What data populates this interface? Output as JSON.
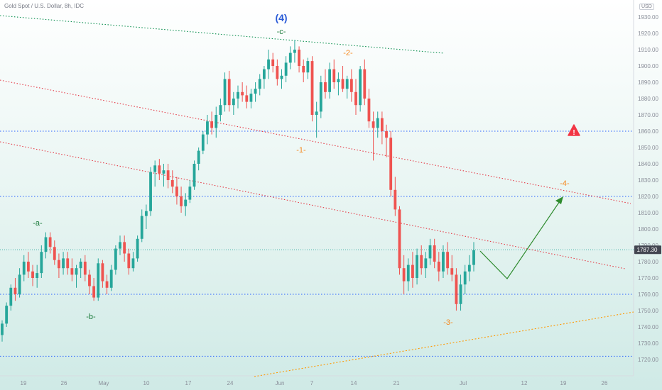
{
  "header": {
    "title": "Gold Spot / U.S. Dollar, 8h, IDC",
    "currency": "USD"
  },
  "colors": {
    "up": "#26a69a",
    "down": "#ef5350",
    "hline": "#2962ff",
    "channel_top": "#0b8f4f",
    "channel_red": "#e53945",
    "support_orange": "#ff9800",
    "projection": "#2e8b2e",
    "label_green": "#1b7a3a",
    "label_blue": "#2a5bd7",
    "label_orange": "#f5891f",
    "price_tag": "#434651"
  },
  "chart_data": {
    "type": "candlestick",
    "symbol": "Gold Spot / U.S. Dollar",
    "interval": "8h",
    "source": "IDC",
    "y_axis": {
      "ticks": [
        "1720.00",
        "1730.00",
        "1740.00",
        "1750.00",
        "1760.00",
        "1770.00",
        "1780.00",
        "1790.00",
        "1800.00",
        "1810.00",
        "1820.00",
        "1830.00",
        "1840.00",
        "1850.00",
        "1860.00",
        "1870.00",
        "1880.00",
        "1890.00",
        "1900.00",
        "1910.00",
        "1920.00",
        "1930.00"
      ],
      "range": [
        1715,
        1933
      ]
    },
    "x_axis": {
      "ticks": [
        "19",
        "26",
        "May",
        "10",
        "17",
        "24",
        "Jun",
        "7",
        "14",
        "21",
        "Jul",
        "12",
        "19",
        "26"
      ]
    },
    "last_price": "1787.30",
    "candles_ohlc": [
      [
        1735,
        1744,
        1731,
        1742
      ],
      [
        1742,
        1755,
        1740,
        1753
      ],
      [
        1753,
        1766,
        1750,
        1764
      ],
      [
        1764,
        1770,
        1756,
        1760
      ],
      [
        1760,
        1776,
        1758,
        1772
      ],
      [
        1772,
        1784,
        1768,
        1780
      ],
      [
        1780,
        1786,
        1770,
        1774
      ],
      [
        1774,
        1778,
        1765,
        1770
      ],
      [
        1770,
        1778,
        1764,
        1773
      ],
      [
        1773,
        1790,
        1770,
        1786
      ],
      [
        1786,
        1798,
        1782,
        1795
      ],
      [
        1795,
        1798,
        1785,
        1789
      ],
      [
        1789,
        1793,
        1778,
        1781
      ],
      [
        1781,
        1785,
        1770,
        1776
      ],
      [
        1776,
        1786,
        1772,
        1782
      ],
      [
        1782,
        1786,
        1772,
        1776
      ],
      [
        1776,
        1782,
        1768,
        1772
      ],
      [
        1772,
        1778,
        1764,
        1776
      ],
      [
        1776,
        1782,
        1770,
        1780
      ],
      [
        1780,
        1784,
        1768,
        1772
      ],
      [
        1772,
        1775,
        1760,
        1765
      ],
      [
        1765,
        1770,
        1756,
        1758
      ],
      [
        1758,
        1782,
        1756,
        1779
      ],
      [
        1779,
        1781,
        1764,
        1768
      ],
      [
        1768,
        1772,
        1760,
        1764
      ],
      [
        1764,
        1778,
        1762,
        1775
      ],
      [
        1775,
        1790,
        1772,
        1788
      ],
      [
        1788,
        1796,
        1784,
        1792
      ],
      [
        1792,
        1796,
        1780,
        1785
      ],
      [
        1785,
        1788,
        1772,
        1776
      ],
      [
        1776,
        1786,
        1774,
        1782
      ],
      [
        1782,
        1796,
        1780,
        1794
      ],
      [
        1794,
        1812,
        1792,
        1808
      ],
      [
        1808,
        1815,
        1800,
        1811
      ],
      [
        1811,
        1838,
        1808,
        1835
      ],
      [
        1835,
        1842,
        1826,
        1839
      ],
      [
        1839,
        1843,
        1830,
        1834
      ],
      [
        1834,
        1840,
        1826,
        1836
      ],
      [
        1836,
        1840,
        1825,
        1830
      ],
      [
        1830,
        1836,
        1822,
        1826
      ],
      [
        1826,
        1832,
        1815,
        1820
      ],
      [
        1820,
        1826,
        1810,
        1814
      ],
      [
        1814,
        1822,
        1808,
        1818
      ],
      [
        1818,
        1830,
        1816,
        1826
      ],
      [
        1826,
        1842,
        1824,
        1840
      ],
      [
        1840,
        1850,
        1836,
        1848
      ],
      [
        1848,
        1860,
        1846,
        1858
      ],
      [
        1858,
        1870,
        1852,
        1866
      ],
      [
        1866,
        1872,
        1858,
        1862
      ],
      [
        1862,
        1875,
        1856,
        1870
      ],
      [
        1870,
        1880,
        1866,
        1876
      ],
      [
        1876,
        1896,
        1872,
        1892
      ],
      [
        1892,
        1897,
        1872,
        1876
      ],
      [
        1876,
        1884,
        1870,
        1880
      ],
      [
        1880,
        1888,
        1874,
        1884
      ],
      [
        1884,
        1890,
        1878,
        1882
      ],
      [
        1882,
        1888,
        1874,
        1878
      ],
      [
        1878,
        1886,
        1874,
        1883
      ],
      [
        1883,
        1890,
        1878,
        1886
      ],
      [
        1886,
        1895,
        1882,
        1892
      ],
      [
        1892,
        1900,
        1886,
        1898
      ],
      [
        1898,
        1910,
        1892,
        1904
      ],
      [
        1904,
        1908,
        1896,
        1900
      ],
      [
        1900,
        1904,
        1888,
        1892
      ],
      [
        1892,
        1898,
        1886,
        1894
      ],
      [
        1894,
        1906,
        1890,
        1902
      ],
      [
        1902,
        1912,
        1898,
        1908
      ],
      [
        1908,
        1916,
        1902,
        1910
      ],
      [
        1910,
        1912,
        1896,
        1900
      ],
      [
        1900,
        1904,
        1890,
        1896
      ],
      [
        1896,
        1905,
        1892,
        1903
      ],
      [
        1903,
        1906,
        1866,
        1870
      ],
      [
        1870,
        1878,
        1856,
        1872
      ],
      [
        1872,
        1894,
        1868,
        1890
      ],
      [
        1890,
        1898,
        1880,
        1884
      ],
      [
        1884,
        1902,
        1880,
        1898
      ],
      [
        1898,
        1904,
        1886,
        1890
      ],
      [
        1890,
        1896,
        1882,
        1892
      ],
      [
        1892,
        1900,
        1884,
        1886
      ],
      [
        1886,
        1894,
        1880,
        1892
      ],
      [
        1892,
        1898,
        1878,
        1884
      ],
      [
        1884,
        1892,
        1870,
        1876
      ],
      [
        1876,
        1900,
        1872,
        1898
      ],
      [
        1898,
        1904,
        1876,
        1880
      ],
      [
        1880,
        1886,
        1862,
        1866
      ],
      [
        1866,
        1872,
        1842,
        1862
      ],
      [
        1862,
        1872,
        1856,
        1868
      ],
      [
        1868,
        1872,
        1852,
        1860
      ],
      [
        1860,
        1864,
        1844,
        1856
      ],
      [
        1856,
        1860,
        1820,
        1824
      ],
      [
        1824,
        1832,
        1808,
        1812
      ],
      [
        1812,
        1814,
        1772,
        1776
      ],
      [
        1776,
        1784,
        1760,
        1768
      ],
      [
        1768,
        1782,
        1762,
        1778
      ],
      [
        1778,
        1786,
        1764,
        1770
      ],
      [
        1770,
        1788,
        1766,
        1784
      ],
      [
        1784,
        1790,
        1772,
        1776
      ],
      [
        1776,
        1786,
        1770,
        1782
      ],
      [
        1782,
        1794,
        1778,
        1790
      ],
      [
        1790,
        1794,
        1776,
        1780
      ],
      [
        1780,
        1786,
        1768,
        1774
      ],
      [
        1774,
        1790,
        1770,
        1786
      ],
      [
        1786,
        1792,
        1772,
        1776
      ],
      [
        1776,
        1784,
        1768,
        1772
      ],
      [
        1772,
        1776,
        1750,
        1754
      ],
      [
        1754,
        1772,
        1750,
        1766
      ],
      [
        1766,
        1778,
        1760,
        1774
      ],
      [
        1774,
        1784,
        1768,
        1778
      ],
      [
        1778,
        1792,
        1774,
        1787
      ]
    ],
    "annotations": {
      "wave_labels": [
        {
          "text": "(4)",
          "color": "label_blue"
        },
        {
          "text": "-c-",
          "color": "label_green"
        },
        {
          "text": "-a-",
          "color": "label_green"
        },
        {
          "text": "-b-",
          "color": "label_green"
        },
        {
          "text": "-1-",
          "color": "label_orange"
        },
        {
          "text": "-2-",
          "color": "label_orange"
        },
        {
          "text": "-3-",
          "color": "label_orange"
        },
        {
          "text": "-4-",
          "color": "label_orange"
        }
      ],
      "horizontal_levels": [
        1860,
        1820,
        1760,
        1722
      ],
      "last_price_level": 1787.3,
      "warning_icon": "warning-triangle-icon"
    }
  }
}
